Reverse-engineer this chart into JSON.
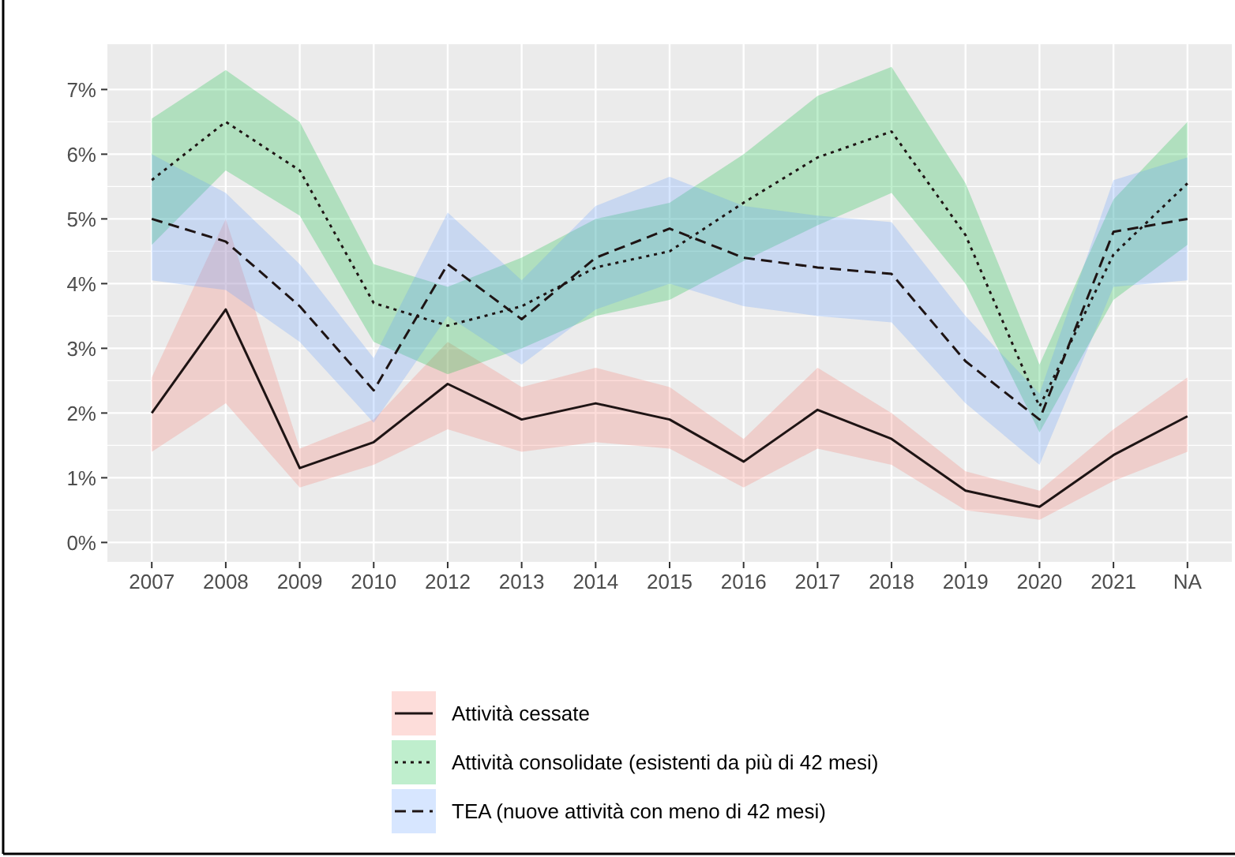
{
  "chart_data": {
    "type": "line",
    "categories": [
      "2007",
      "2008",
      "2009",
      "2010",
      "2012",
      "2013",
      "2014",
      "2015",
      "2016",
      "2017",
      "2018",
      "2019",
      "2020",
      "2021",
      "NA"
    ],
    "ylim": [
      -0.3,
      7.7
    ],
    "yticks": [
      {
        "value": 0,
        "label": "0%"
      },
      {
        "value": 1,
        "label": "1%"
      },
      {
        "value": 2,
        "label": "2%"
      },
      {
        "value": 3,
        "label": "3%"
      },
      {
        "value": 4,
        "label": "4%"
      },
      {
        "value": 5,
        "label": "5%"
      },
      {
        "value": 6,
        "label": "6%"
      },
      {
        "value": 7,
        "label": "7%"
      }
    ],
    "grid": true,
    "legend": "bottom",
    "series": [
      {
        "name": "Attività cessate",
        "color": "#1e1414",
        "line_style": "solid",
        "values": [
          2.0,
          3.6,
          1.15,
          1.55,
          2.45,
          1.9,
          2.15,
          1.9,
          1.25,
          2.05,
          1.6,
          0.8,
          0.55,
          1.35,
          1.95
        ],
        "lower": [
          1.4,
          2.15,
          0.85,
          1.2,
          1.75,
          1.4,
          1.55,
          1.45,
          0.85,
          1.45,
          1.2,
          0.5,
          0.35,
          0.95,
          1.4
        ],
        "upper": [
          2.55,
          5.0,
          1.45,
          1.9,
          3.1,
          2.4,
          2.7,
          2.4,
          1.6,
          2.7,
          2.0,
          1.1,
          0.8,
          1.75,
          2.55
        ]
      },
      {
        "name": "Attività consolidate (esistenti da più di 42 mesi)",
        "color": "#1e1414",
        "line_style": "dotted",
        "values": [
          5.6,
          6.5,
          5.75,
          3.7,
          3.35,
          3.65,
          4.25,
          4.5,
          5.25,
          5.95,
          6.35,
          4.75,
          2.1,
          4.45,
          5.55
        ],
        "lower": [
          4.6,
          5.75,
          5.05,
          3.1,
          2.6,
          3.0,
          3.5,
          3.75,
          4.35,
          4.9,
          5.4,
          4.0,
          1.7,
          3.75,
          4.6
        ],
        "upper": [
          6.55,
          7.3,
          6.5,
          4.3,
          3.95,
          4.4,
          5.0,
          5.25,
          6.0,
          6.9,
          7.35,
          5.55,
          2.75,
          5.3,
          6.5
        ]
      },
      {
        "name": "TEA (nuove attività con meno di 42 mesi)",
        "color": "#1e1414",
        "line_style": "dashed",
        "values": [
          5.0,
          4.65,
          3.65,
          2.35,
          4.3,
          3.45,
          4.4,
          4.85,
          4.4,
          4.25,
          4.15,
          2.8,
          1.9,
          4.8,
          5.0
        ],
        "lower": [
          4.05,
          3.9,
          3.1,
          1.85,
          3.5,
          2.75,
          3.6,
          4.0,
          3.65,
          3.5,
          3.4,
          2.15,
          1.2,
          3.95,
          4.05
        ],
        "upper": [
          6.0,
          5.4,
          4.3,
          2.85,
          5.1,
          4.05,
          5.2,
          5.65,
          5.2,
          5.05,
          4.95,
          3.5,
          2.3,
          5.6,
          5.95
        ]
      }
    ]
  }
}
